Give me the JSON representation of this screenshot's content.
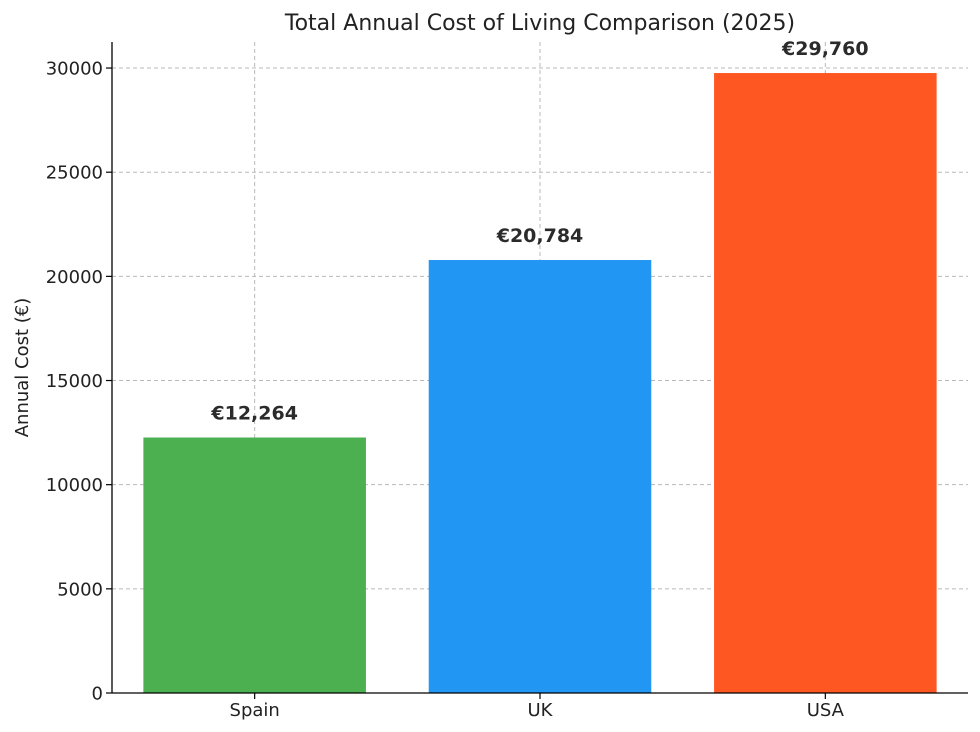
{
  "chart_data": {
    "type": "bar",
    "title": "Total Annual Cost of Living Comparison (2025)",
    "xlabel": "",
    "ylabel": "Annual Cost (€)",
    "categories": [
      "Spain",
      "UK",
      "USA"
    ],
    "values": [
      12264,
      20784,
      29760
    ],
    "value_labels": [
      "€12,264",
      "€20,784",
      "€29,760"
    ],
    "colors": [
      "#4caf50",
      "#2196f3",
      "#ff5722"
    ],
    "ylim": [
      0,
      31250
    ],
    "yticks": [
      0,
      5000,
      10000,
      15000,
      20000,
      25000,
      30000
    ],
    "ytick_labels": [
      "0",
      "5000",
      "10000",
      "15000",
      "20000",
      "25000",
      "30000"
    ],
    "grid": true,
    "legend": "none"
  }
}
